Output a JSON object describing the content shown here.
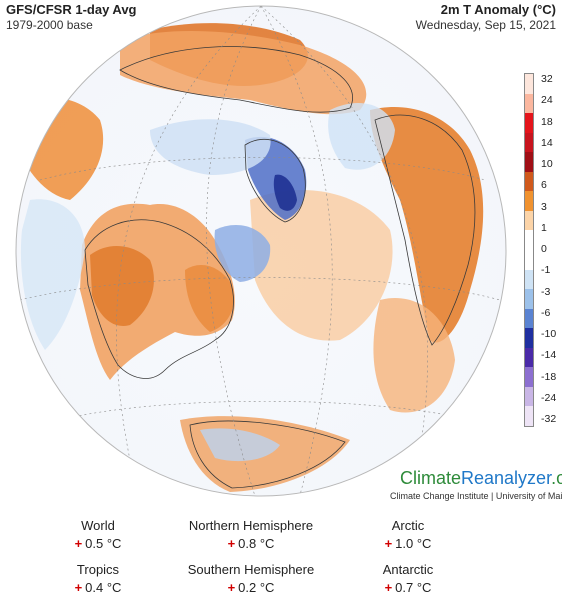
{
  "header": {
    "source_title": "GFS/CFSR 1-day Avg",
    "base_period": "1979-2000 base",
    "variable_title": "2m T Anomaly (°C)",
    "date": "Wednesday, Sep 15, 2021"
  },
  "colorbar": {
    "labels": [
      "32",
      "24",
      "18",
      "14",
      "10",
      "6",
      "3",
      "1",
      "0",
      "-1",
      "-3",
      "-6",
      "-10",
      "-14",
      "-18",
      "-24",
      "-32"
    ],
    "colors": [
      "#fde6dc",
      "#fbb79f",
      "#e4141b",
      "#c8141e",
      "#a00f16",
      "#d0591c",
      "#f0922f",
      "#fcd4a8",
      "#ffffff",
      "#ffffff",
      "#cfe3f5",
      "#9cc1ea",
      "#5a83d2",
      "#1f2fa0",
      "#4a2aa8",
      "#8c6fd0",
      "#c9b6e6",
      "#eee4f6"
    ]
  },
  "brand": {
    "part1": "Climate",
    "part2": "Reanalyzer",
    "part3": ".org",
    "subtitle": "Climate Change Institute | University of Maine"
  },
  "stats": {
    "world": {
      "label": "World",
      "sign": "+",
      "value": "0.5 °C"
    },
    "northern": {
      "label": "Northern Hemisphere",
      "sign": "+",
      "value": "0.8 °C"
    },
    "arctic": {
      "label": "Arctic",
      "sign": "+",
      "value": "1.0 °C"
    },
    "tropics": {
      "label": "Tropics",
      "sign": "+",
      "value": "0.4 °C"
    },
    "southern": {
      "label": "Southern Hemisphere",
      "sign": "+",
      "value": "0.2 °C"
    },
    "antarctic": {
      "label": "Antarctic",
      "sign": "+",
      "value": "0.7 °C"
    }
  }
}
